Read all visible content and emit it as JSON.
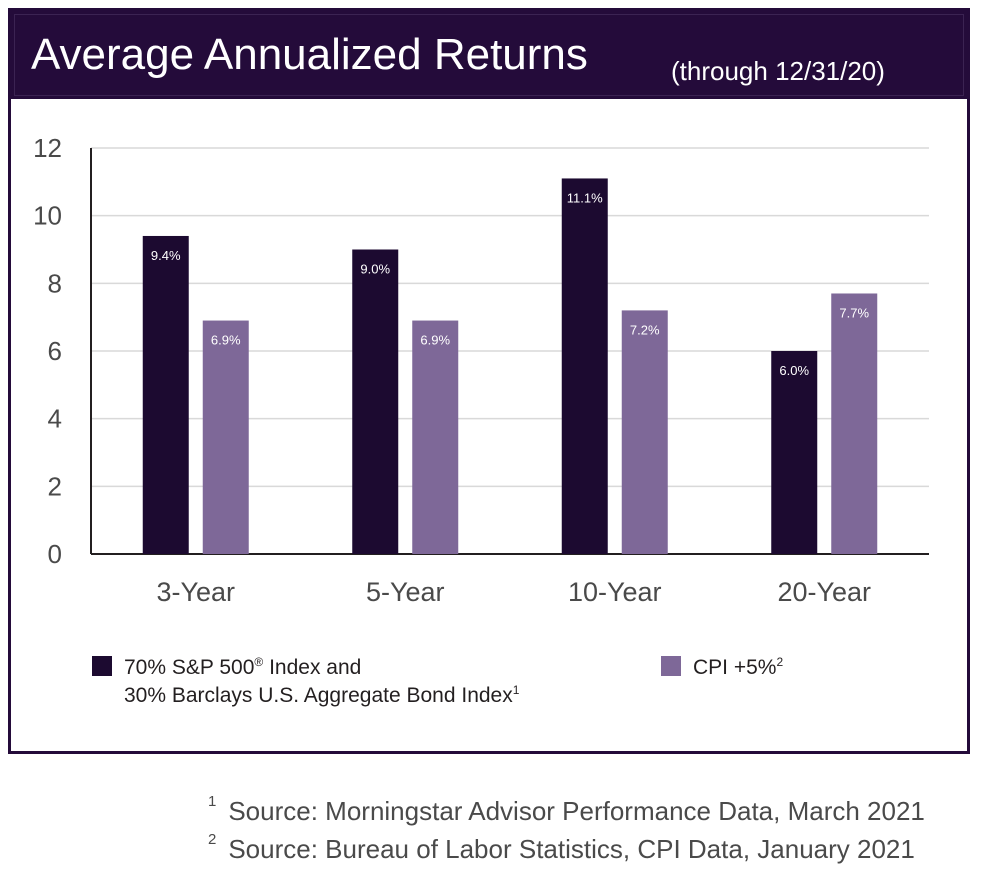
{
  "header": {
    "title": "Average Annualized Returns",
    "subtitle": "(through 12/31/20)"
  },
  "colors": {
    "series1": "#1c0a30",
    "series2": "#7e6898",
    "grid": "#d9d9d9",
    "axis": "#231f20",
    "title_bg": "#240b3a"
  },
  "chart_data": {
    "type": "bar",
    "title": "Average Annualized Returns (through 12/31/20)",
    "categories": [
      "3-Year",
      "5-Year",
      "10-Year",
      "20-Year"
    ],
    "series": [
      {
        "name": "70% S&P 500 Index and 30% Barclays U.S. Aggregate Bond Index",
        "values": [
          9.4,
          9.0,
          11.1,
          6.0
        ],
        "labels": [
          "9.4%",
          "9.0%",
          "11.1%",
          "6.0%"
        ]
      },
      {
        "name": "CPI +5%",
        "values": [
          6.9,
          6.9,
          7.2,
          7.7
        ],
        "labels": [
          "6.9%",
          "6.9%",
          "7.2%",
          "7.7%"
        ]
      }
    ],
    "ylim": [
      0,
      12
    ],
    "yticks": [
      "0",
      "2",
      "4",
      "6",
      "8",
      "10",
      "12"
    ],
    "grid": true,
    "xlabel": "",
    "ylabel": ""
  },
  "legend": {
    "series1_line1": "70% S&P 500",
    "series1_sup1": "®",
    "series1_line1b": " Index and",
    "series1_line2": "30% Barclays U.S. Aggregate Bond Index",
    "series1_sup2": "1",
    "series2_label": "CPI +5%",
    "series2_sup": "2"
  },
  "footnotes": [
    {
      "num": "1",
      "text": "Source: Morningstar Advisor Performance Data, March 2021"
    },
    {
      "num": "2",
      "text": "Source: Bureau of Labor Statistics, CPI Data, January 2021"
    }
  ]
}
